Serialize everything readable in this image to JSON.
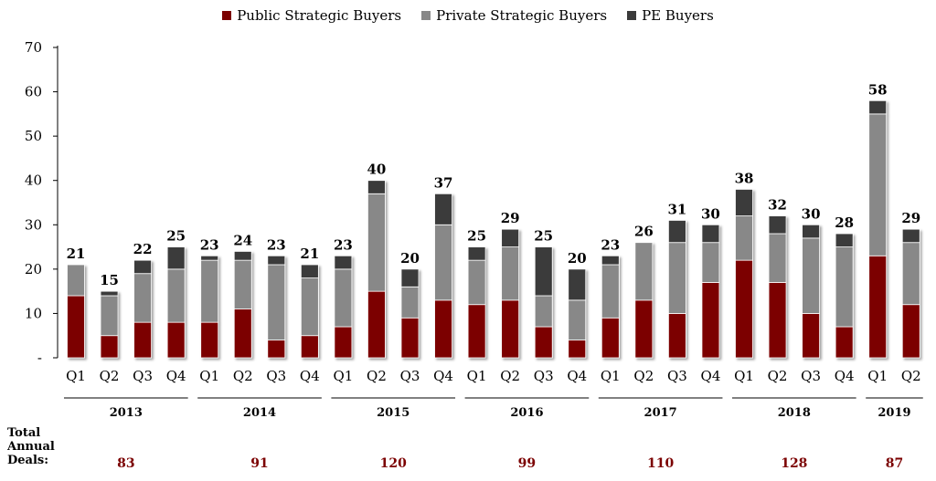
{
  "chart_data": {
    "type": "bar",
    "stacked": true,
    "categories": [
      "Q1",
      "Q2",
      "Q3",
      "Q4",
      "Q1",
      "Q2",
      "Q3",
      "Q4",
      "Q1",
      "Q2",
      "Q3",
      "Q4",
      "Q1",
      "Q2",
      "Q3",
      "Q4",
      "Q1",
      "Q2",
      "Q3",
      "Q4",
      "Q1",
      "Q2",
      "Q3",
      "Q4",
      "Q1",
      "Q2"
    ],
    "series": [
      {
        "name": "Public Strategic Buyers",
        "color": "#7b0000",
        "values": [
          14,
          5,
          8,
          8,
          8,
          11,
          4,
          5,
          7,
          15,
          9,
          13,
          12,
          13,
          7,
          4,
          9,
          13,
          10,
          17,
          22,
          17,
          10,
          7,
          23,
          12
        ]
      },
      {
        "name": "Private Strategic Buyers",
        "color": "#888888",
        "values": [
          7,
          9,
          11,
          12,
          14,
          11,
          17,
          13,
          13,
          22,
          7,
          17,
          10,
          12,
          7,
          9,
          12,
          13,
          16,
          9,
          10,
          11,
          17,
          18,
          32,
          14
        ]
      },
      {
        "name": "PE Buyers",
        "color": "#3b3b3b",
        "values": [
          0,
          1,
          3,
          5,
          1,
          2,
          2,
          3,
          3,
          3,
          4,
          7,
          3,
          4,
          11,
          7,
          2,
          0,
          5,
          4,
          6,
          4,
          3,
          3,
          3,
          3
        ]
      }
    ],
    "totals": [
      21,
      15,
      22,
      25,
      23,
      24,
      23,
      21,
      23,
      40,
      20,
      37,
      25,
      29,
      25,
      20,
      23,
      26,
      31,
      30,
      38,
      32,
      30,
      28,
      58,
      29
    ],
    "years": [
      {
        "label": "2013",
        "start": 0,
        "end": 3,
        "annual": "83"
      },
      {
        "label": "2014",
        "start": 4,
        "end": 7,
        "annual": "91"
      },
      {
        "label": "2015",
        "start": 8,
        "end": 11,
        "annual": "120"
      },
      {
        "label": "2016",
        "start": 12,
        "end": 15,
        "annual": "99"
      },
      {
        "label": "2017",
        "start": 16,
        "end": 19,
        "annual": "110"
      },
      {
        "label": "2018",
        "start": 20,
        "end": 23,
        "annual": "128"
      },
      {
        "label": "2019",
        "start": 24,
        "end": 25,
        "annual": "87"
      }
    ],
    "ylim": [
      0,
      70
    ],
    "yticks": [
      0,
      10,
      20,
      30,
      40,
      50,
      60,
      70
    ],
    "ytick_labels": [
      "-",
      "10",
      "20",
      "30",
      "40",
      "50",
      "60",
      "70"
    ],
    "legend_position": "top-center",
    "grid": false,
    "annual_color": "#7b0000"
  },
  "legend": [
    {
      "label": "Public Strategic Buyers",
      "color": "#7b0000"
    },
    {
      "label": "Private Strategic Buyers",
      "color": "#888888"
    },
    {
      "label": "PE Buyers",
      "color": "#3b3b3b"
    }
  ],
  "footer": {
    "label": "Total\nAnnual\nDeals:"
  }
}
